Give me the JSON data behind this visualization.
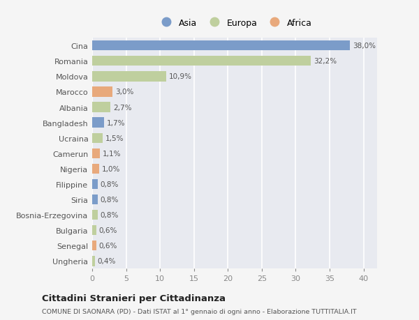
{
  "countries": [
    "Cina",
    "Romania",
    "Moldova",
    "Marocco",
    "Albania",
    "Bangladesh",
    "Ucraina",
    "Camerun",
    "Nigeria",
    "Filippine",
    "Siria",
    "Bosnia-Erzegovina",
    "Bulgaria",
    "Senegal",
    "Ungheria"
  ],
  "values": [
    38.0,
    32.2,
    10.9,
    3.0,
    2.7,
    1.7,
    1.5,
    1.1,
    1.0,
    0.8,
    0.8,
    0.8,
    0.6,
    0.6,
    0.4
  ],
  "labels": [
    "38,0%",
    "32,2%",
    "10,9%",
    "3,0%",
    "2,7%",
    "1,7%",
    "1,5%",
    "1,1%",
    "1,0%",
    "0,8%",
    "0,8%",
    "0,8%",
    "0,6%",
    "0,6%",
    "0,4%"
  ],
  "continents": [
    "Asia",
    "Europa",
    "Europa",
    "Africa",
    "Europa",
    "Asia",
    "Europa",
    "Africa",
    "Africa",
    "Asia",
    "Asia",
    "Europa",
    "Europa",
    "Africa",
    "Europa"
  ],
  "colors": {
    "Asia": "#7b9cc9",
    "Europa": "#bfcf9e",
    "Africa": "#e8a97c"
  },
  "xlim": [
    0,
    40
  ],
  "xticks": [
    0,
    5,
    10,
    15,
    20,
    25,
    30,
    35,
    40
  ],
  "plot_bg_color": "#e8eaf0",
  "fig_bg_color": "#f5f5f5",
  "grid_color": "#ffffff",
  "title": "Cittadini Stranieri per Cittadinanza",
  "subtitle": "COMUNE DI SAONARA (PD) - Dati ISTAT al 1° gennaio di ogni anno - Elaborazione TUTTITALIA.IT",
  "bar_height": 0.65,
  "label_fontsize": 7.5,
  "ytick_fontsize": 8.0,
  "xtick_fontsize": 8.0
}
